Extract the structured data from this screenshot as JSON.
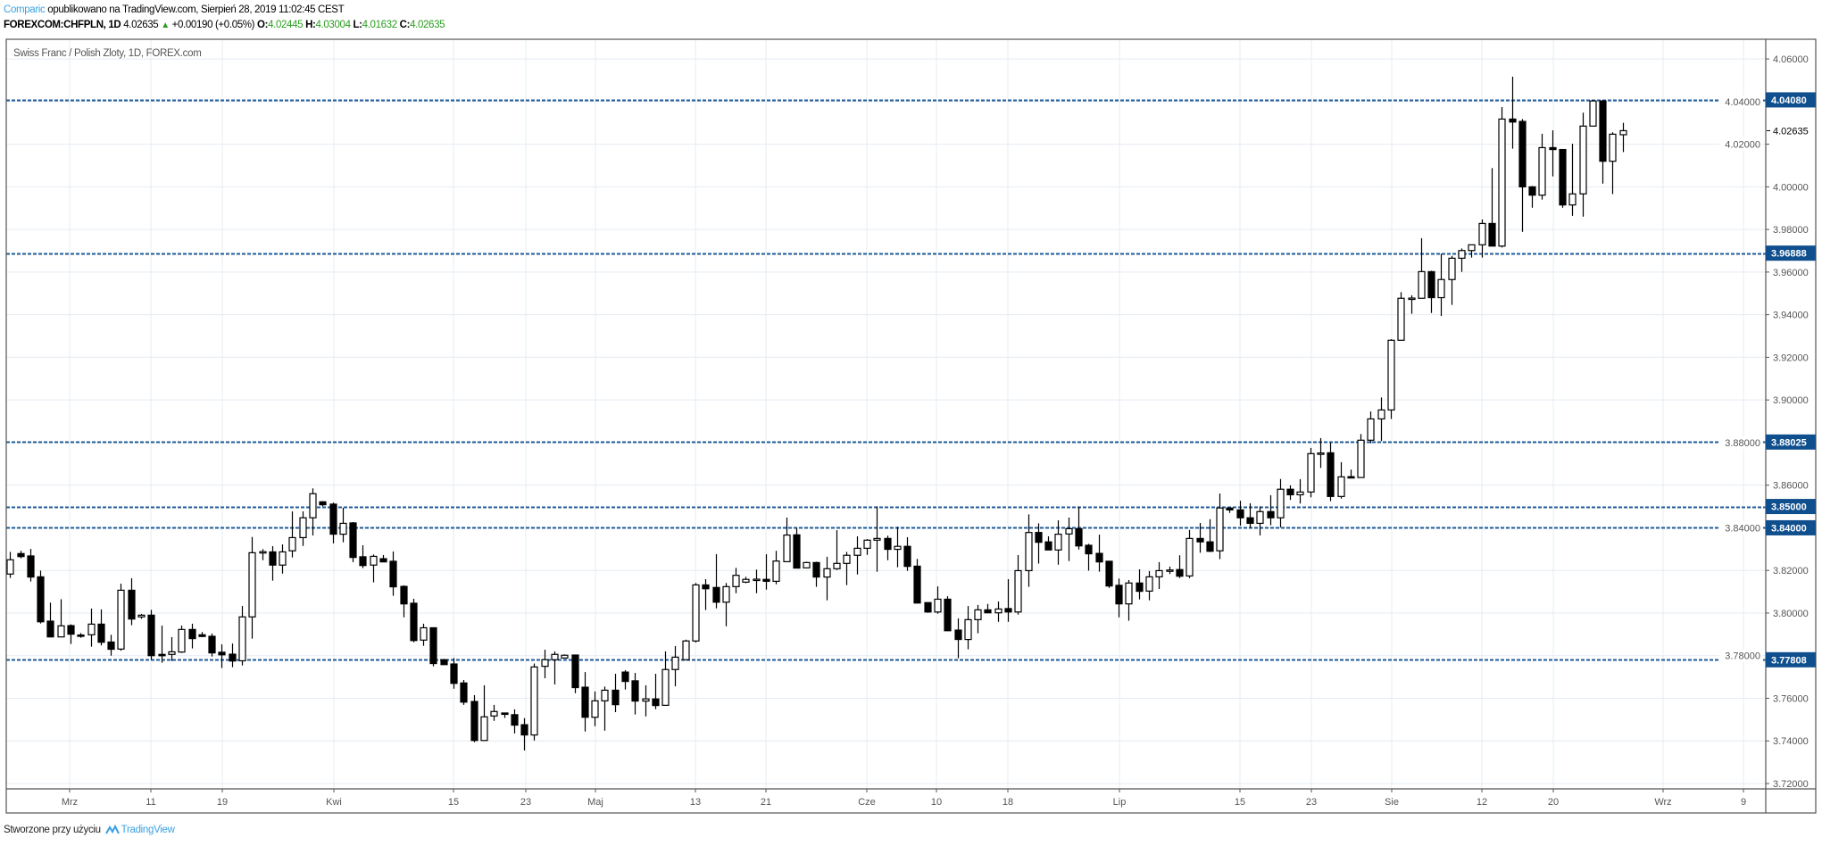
{
  "header": {
    "author": "Comparic",
    "published": "opublikowano na TradingView.com, Sierpień 28, 2019 11:02:45 CEST",
    "symbol": "FOREXCOM:CHFPLN, 1D",
    "last": "4.02635",
    "change": "+0.00190 (+0.05%)",
    "o_label": "O:",
    "o": "4.02445",
    "h_label": "H:",
    "h": "4.03004",
    "l_label": "L:",
    "l": "4.01632",
    "c_label": "C:",
    "c": "4.02635",
    "up_icon": "triangle-up-icon"
  },
  "footer": {
    "text": "Stworzone przy użyciu",
    "brand": "TradingView"
  },
  "colors": {
    "level": "#1f5a99",
    "level_label_bg": "#0f4f8e",
    "up": "#2a9d1f",
    "brand": "#3aa0e0",
    "grid": "#e4ecf3"
  },
  "chart_data": {
    "type": "bar",
    "subtype": "candlestick",
    "title": "Swiss Franc / Polish Zloty, 1D, FOREX.com",
    "ylim": [
      3.72,
      4.06
    ],
    "grid": true,
    "y_ticks": [
      "4.06000",
      "4.04000",
      "4.02000",
      "4.00000",
      "3.98000",
      "3.96000",
      "3.94000",
      "3.92000",
      "3.90000",
      "3.88000",
      "3.86000",
      "3.84000",
      "3.82000",
      "3.80000",
      "3.78000",
      "3.76000",
      "3.74000",
      "3.72000"
    ],
    "x_ticks": [
      "Mrz",
      "11",
      "19",
      "Kwi",
      "15",
      "23",
      "Maj",
      "13",
      "21",
      "Cze",
      "10",
      "18",
      "Lip",
      "15",
      "23",
      "Sie",
      "12",
      "20",
      "Wrz",
      "9"
    ],
    "levels": [
      {
        "value": 4.0408,
        "label": "4.04080"
      },
      {
        "value": 3.96888,
        "label": "3.96888"
      },
      {
        "value": 3.88025,
        "label": "3.88025"
      },
      {
        "value": 3.85,
        "label": "3.85000"
      },
      {
        "value": 3.84,
        "label": "3.84000"
      },
      {
        "value": 3.77808,
        "label": "3.77808"
      }
    ],
    "last_price": {
      "value": 4.02635,
      "label": "4.02635"
    },
    "ohlc": [
      [
        3.8183,
        3.8287,
        3.8165,
        3.825
      ],
      [
        3.8279,
        3.8292,
        3.8257,
        3.8265
      ],
      [
        3.8268,
        3.8301,
        3.8148,
        3.8169
      ],
      [
        3.817,
        3.8199,
        3.7951,
        3.7959
      ],
      [
        3.7962,
        3.8049,
        3.7888,
        3.7888
      ],
      [
        3.7888,
        3.8065,
        3.7888,
        3.794
      ],
      [
        3.7941,
        3.7947,
        3.7855,
        3.7901
      ],
      [
        3.7897,
        3.7906,
        3.7884,
        3.7894
      ],
      [
        3.7898,
        3.8021,
        3.7842,
        3.7948
      ],
      [
        3.7948,
        3.8017,
        3.7848,
        3.7863
      ],
      [
        3.7864,
        3.7898,
        3.78,
        3.783
      ],
      [
        3.7831,
        3.8138,
        3.7823,
        3.8107
      ],
      [
        3.8107,
        3.8163,
        3.7943,
        3.7972
      ],
      [
        3.7982,
        3.7996,
        3.7973,
        3.799
      ],
      [
        3.799,
        3.8015,
        3.7781,
        3.78
      ],
      [
        3.7806,
        3.7941,
        3.7767,
        3.78
      ],
      [
        3.7806,
        3.7887,
        3.7775,
        3.7818
      ],
      [
        3.7817,
        3.7941,
        3.7813,
        3.7923
      ],
      [
        3.7923,
        3.795,
        3.7834,
        3.788
      ],
      [
        3.7898,
        3.7911,
        3.7887,
        3.789
      ],
      [
        3.7891,
        3.7904,
        3.7796,
        3.7813
      ],
      [
        3.7816,
        3.7853,
        3.7742,
        3.7804
      ],
      [
        3.7807,
        3.7857,
        3.7746,
        3.7775
      ],
      [
        3.7776,
        3.8033,
        3.7754,
        3.7982
      ],
      [
        3.7982,
        3.8357,
        3.788,
        3.8283
      ],
      [
        3.8282,
        3.83,
        3.8248,
        3.8288
      ],
      [
        3.8287,
        3.8314,
        3.8152,
        3.8225
      ],
      [
        3.8225,
        3.8322,
        3.8185,
        3.8287
      ],
      [
        3.8292,
        3.8477,
        3.8261,
        3.8354
      ],
      [
        3.8354,
        3.8477,
        3.8315,
        3.8447
      ],
      [
        3.8447,
        3.8585,
        3.8364,
        3.856
      ],
      [
        3.8522,
        3.8525,
        3.8501,
        3.8508
      ],
      [
        3.8511,
        3.8518,
        3.8327,
        3.837
      ],
      [
        3.837,
        3.8494,
        3.8332,
        3.8421
      ],
      [
        3.8423,
        3.8427,
        3.8239,
        3.8261
      ],
      [
        3.8264,
        3.8318,
        3.8211,
        3.8223
      ],
      [
        3.8225,
        3.8275,
        3.8144,
        3.8266
      ],
      [
        3.8255,
        3.8272,
        3.8239,
        3.824
      ],
      [
        3.8243,
        3.8289,
        3.8081,
        3.8123
      ],
      [
        3.8125,
        3.813,
        3.798,
        3.8043
      ],
      [
        3.8046,
        3.8067,
        3.7863,
        3.7871
      ],
      [
        3.7873,
        3.795,
        3.7846,
        3.7931
      ],
      [
        3.7931,
        3.7931,
        3.775,
        3.7763
      ],
      [
        3.7781,
        3.7785,
        3.7758,
        3.7758
      ],
      [
        3.7761,
        3.7789,
        3.7645,
        3.767
      ],
      [
        3.7672,
        3.7686,
        3.7569,
        3.7582
      ],
      [
        3.7585,
        3.7615,
        3.7394,
        3.7402
      ],
      [
        3.7402,
        3.7661,
        3.7402,
        3.7513
      ],
      [
        3.7517,
        3.7569,
        3.7494,
        3.7538
      ],
      [
        3.7531,
        3.7533,
        3.7508,
        3.7525
      ],
      [
        3.7523,
        3.7548,
        3.7435,
        3.7474
      ],
      [
        3.7476,
        3.7507,
        3.7355,
        3.7428
      ],
      [
        3.7428,
        3.7763,
        3.7402,
        3.7747
      ],
      [
        3.775,
        3.7828,
        3.7694,
        3.7781
      ],
      [
        3.7781,
        3.782,
        3.7665,
        3.7806
      ],
      [
        3.7789,
        3.7806,
        3.7789,
        3.7802
      ],
      [
        3.7803,
        3.7803,
        3.7624,
        3.765
      ],
      [
        3.7652,
        3.7723,
        3.7444,
        3.7511
      ],
      [
        3.7511,
        3.7632,
        3.7469,
        3.7588
      ],
      [
        3.7588,
        3.7655,
        3.7448,
        3.7638
      ],
      [
        3.7638,
        3.7715,
        3.7535,
        3.757
      ],
      [
        3.7723,
        3.7732,
        3.7641,
        3.7679
      ],
      [
        3.7682,
        3.7719,
        3.7524,
        3.7587
      ],
      [
        3.7587,
        3.7661,
        3.7515,
        3.7597
      ],
      [
        3.7597,
        3.7715,
        3.7549,
        3.7566
      ],
      [
        3.7567,
        3.782,
        3.7567,
        3.7735
      ],
      [
        3.7735,
        3.7845,
        3.7656,
        3.7793
      ],
      [
        3.7781,
        3.7875,
        3.7781,
        3.7869
      ],
      [
        3.7869,
        3.8141,
        3.7862,
        3.8132
      ],
      [
        3.8132,
        3.8159,
        3.8014,
        3.8114
      ],
      [
        3.812,
        3.8276,
        3.8022,
        3.8051
      ],
      [
        3.8051,
        3.8141,
        3.7938,
        3.8124
      ],
      [
        3.8124,
        3.8212,
        3.8093,
        3.8177
      ],
      [
        3.8145,
        3.817,
        3.814,
        3.8158
      ],
      [
        3.8156,
        3.8204,
        3.8093,
        3.8159
      ],
      [
        3.8158,
        3.8276,
        3.811,
        3.8149
      ],
      [
        3.8149,
        3.8292,
        3.8135,
        3.8244
      ],
      [
        3.8241,
        3.8448,
        3.8241,
        3.8366
      ],
      [
        3.8367,
        3.8399,
        3.8211,
        3.8211
      ],
      [
        3.8212,
        3.8241,
        3.8212,
        3.8237
      ],
      [
        3.8237,
        3.8241,
        3.8123,
        3.8169
      ],
      [
        3.8169,
        3.8264,
        3.806,
        3.8208
      ],
      [
        3.8208,
        3.8389,
        3.8202,
        3.8233
      ],
      [
        3.8233,
        3.8287,
        3.8131,
        3.8271
      ],
      [
        3.8271,
        3.836,
        3.8181,
        3.8304
      ],
      [
        3.8304,
        3.8347,
        3.8273,
        3.8342
      ],
      [
        3.8342,
        3.8501,
        3.8194,
        3.835
      ],
      [
        3.835,
        3.8363,
        3.8248,
        3.8299
      ],
      [
        3.8299,
        3.8405,
        3.8215,
        3.8313
      ],
      [
        3.8313,
        3.8356,
        3.8198,
        3.8219
      ],
      [
        3.822,
        3.8254,
        3.8047,
        3.8047
      ],
      [
        3.8049,
        3.8049,
        3.8001,
        3.8005
      ],
      [
        3.8005,
        3.8125,
        3.7997,
        3.8065
      ],
      [
        3.8065,
        3.8079,
        3.7917,
        3.7917
      ],
      [
        3.792,
        3.7975,
        3.7788,
        3.7876
      ],
      [
        3.7876,
        3.8033,
        3.783,
        3.7969
      ],
      [
        3.7969,
        3.8038,
        3.7905,
        3.8015
      ],
      [
        3.8015,
        3.8043,
        3.8001,
        3.8001
      ],
      [
        3.8001,
        3.8054,
        3.7959,
        3.8019
      ],
      [
        3.8021,
        3.8159,
        3.7959,
        3.8005
      ],
      [
        3.8005,
        3.8272,
        3.7993,
        3.8199
      ],
      [
        3.8199,
        3.8463,
        3.8123,
        3.8378
      ],
      [
        3.8378,
        3.8421,
        3.8232,
        3.8332
      ],
      [
        3.8334,
        3.836,
        3.8296,
        3.8296
      ],
      [
        3.8296,
        3.8435,
        3.8227,
        3.837
      ],
      [
        3.8371,
        3.8448,
        3.8244,
        3.8396
      ],
      [
        3.8396,
        3.85,
        3.8298,
        3.8315
      ],
      [
        3.8318,
        3.8325,
        3.8199,
        3.8278
      ],
      [
        3.828,
        3.8368,
        3.8194,
        3.824
      ],
      [
        3.8243,
        3.8243,
        3.8118,
        3.8127
      ],
      [
        3.813,
        3.8162,
        3.798,
        3.8043
      ],
      [
        3.8043,
        3.8155,
        3.7964,
        3.8141
      ],
      [
        3.8141,
        3.8205,
        3.8064,
        3.8102
      ],
      [
        3.8103,
        3.8197,
        3.806,
        3.817
      ],
      [
        3.817,
        3.8239,
        3.8113,
        3.8199
      ],
      [
        3.8199,
        3.8218,
        3.8183,
        3.8202
      ],
      [
        3.8204,
        3.8271,
        3.8164,
        3.8173
      ],
      [
        3.8174,
        3.839,
        3.8164,
        3.835
      ],
      [
        3.835,
        3.8423,
        3.8283,
        3.8334
      ],
      [
        3.8334,
        3.844,
        3.8286,
        3.829
      ],
      [
        3.8292,
        3.8561,
        3.8253,
        3.8493
      ],
      [
        3.8493,
        3.8493,
        3.847,
        3.8484
      ],
      [
        3.8484,
        3.8527,
        3.841,
        3.8447
      ],
      [
        3.8447,
        3.8515,
        3.84,
        3.8421
      ],
      [
        3.8421,
        3.8501,
        3.8364,
        3.8476
      ],
      [
        3.8476,
        3.8553,
        3.8412,
        3.8447
      ],
      [
        3.8447,
        3.8629,
        3.8402,
        3.8581
      ],
      [
        3.8581,
        3.8599,
        3.8531,
        3.8555
      ],
      [
        3.8555,
        3.8628,
        3.8514,
        3.8568
      ],
      [
        3.8568,
        3.8775,
        3.8543,
        3.8748
      ],
      [
        3.8748,
        3.8821,
        3.8681,
        3.8751
      ],
      [
        3.8752,
        3.88,
        3.8525,
        3.8547
      ],
      [
        3.8547,
        3.8708,
        3.8537,
        3.8639
      ],
      [
        3.864,
        3.8673,
        3.8635,
        3.8636
      ],
      [
        3.8636,
        3.884,
        3.8636,
        3.8811
      ],
      [
        3.8811,
        3.8946,
        3.8797,
        3.8911
      ],
      [
        3.8911,
        3.9012,
        3.8807,
        3.8953
      ],
      [
        3.8953,
        3.9285,
        3.8911,
        3.928
      ],
      [
        3.928,
        3.9506,
        3.928,
        3.9477
      ],
      [
        3.9477,
        3.9491,
        3.9404,
        3.9478
      ],
      [
        3.9477,
        3.9759,
        3.9477,
        3.9602
      ],
      [
        3.9602,
        3.9606,
        3.9408,
        3.948
      ],
      [
        3.948,
        3.9686,
        3.9394,
        3.9565
      ],
      [
        3.9565,
        3.9676,
        3.9446,
        3.9665
      ],
      [
        3.9665,
        3.9711,
        3.9601,
        3.9701
      ],
      [
        3.9701,
        3.9728,
        3.9668,
        3.9728
      ],
      [
        3.9728,
        3.9847,
        3.9668,
        3.9828
      ],
      [
        3.9828,
        4.0088,
        3.9722,
        3.9722
      ],
      [
        3.9722,
        4.0374,
        3.9715,
        4.0318
      ],
      [
        4.0318,
        4.0517,
        4.0179,
        4.0304
      ],
      [
        4.0307,
        4.0318,
        3.9789,
        4.0
      ],
      [
        4.0,
        4.0004,
        3.9902,
        3.9961
      ],
      [
        3.9961,
        4.0249,
        3.994,
        4.0184
      ],
      [
        4.0184,
        4.0265,
        4.0049,
        4.0175
      ],
      [
        4.0175,
        4.0175,
        3.9902,
        3.9915
      ],
      [
        3.9915,
        4.0202,
        3.9864,
        3.9967
      ],
      [
        3.9967,
        4.0348,
        3.986,
        4.0285
      ],
      [
        4.0285,
        4.0408,
        4.0285,
        4.0403
      ],
      [
        4.0403,
        4.0408,
        4.0015,
        4.012
      ],
      [
        4.012,
        4.0256,
        3.9966,
        4.0247
      ],
      [
        4.02445,
        4.03004,
        4.01632,
        4.02635
      ]
    ]
  }
}
